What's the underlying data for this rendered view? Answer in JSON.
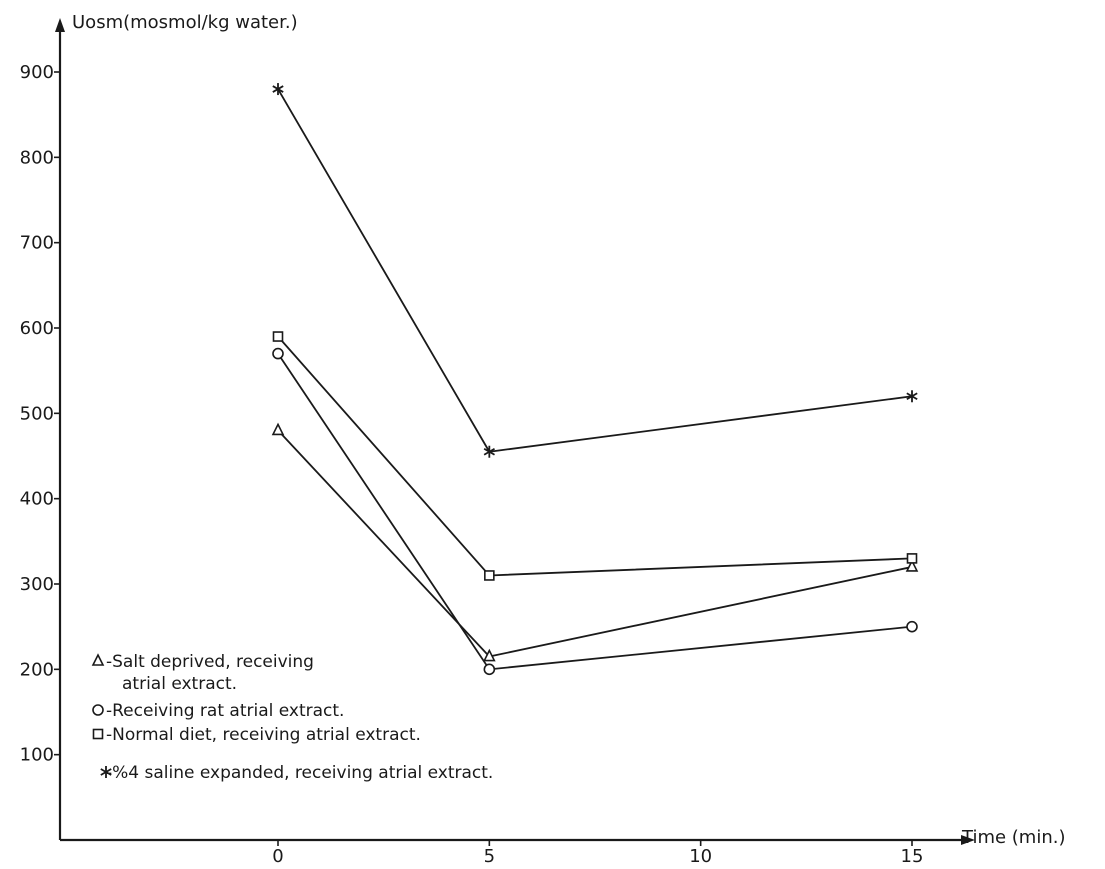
{
  "chart_data": {
    "type": "line",
    "ylabel": "Uosm(mosmol/kg water.)",
    "xlabel": "Time (min.)",
    "x_ticks": [
      0,
      5,
      10,
      15
    ],
    "y_ticks": [
      100,
      200,
      300,
      400,
      500,
      600,
      700,
      800,
      900
    ],
    "xlim": [
      -2.5,
      16.5
    ],
    "ylim": [
      0,
      950
    ],
    "grid": false,
    "legend_position": "bottom-left",
    "series": [
      {
        "name": "-Salt   deprived, receiving atrial extract.",
        "legend_lines": [
          "-Salt   deprived, receiving",
          "atrial extract."
        ],
        "marker": "triangle",
        "x": [
          0,
          5,
          15
        ],
        "y": [
          480,
          215,
          320
        ]
      },
      {
        "name": "-Receiving rat atrial extract.",
        "legend_lines": [
          "-Receiving rat atrial extract."
        ],
        "marker": "circle",
        "x": [
          0,
          5,
          15
        ],
        "y": [
          570,
          200,
          250
        ]
      },
      {
        "name": "-Normal diet, receiving atrial extract.",
        "legend_lines": [
          "-Normal diet, receiving atrial extract."
        ],
        "marker": "square",
        "x": [
          0,
          5,
          15
        ],
        "y": [
          590,
          310,
          330
        ]
      },
      {
        "name": "-%4 saline expanded, receiving atrial extract.",
        "legend_lines": [
          "-%4 saline expanded, receiving atrial extract."
        ],
        "marker": "star",
        "x": [
          0,
          5,
          15
        ],
        "y": [
          880,
          455,
          520
        ]
      }
    ],
    "colors": {
      "line": "#1a1a1a",
      "background": "#ffffff"
    }
  }
}
